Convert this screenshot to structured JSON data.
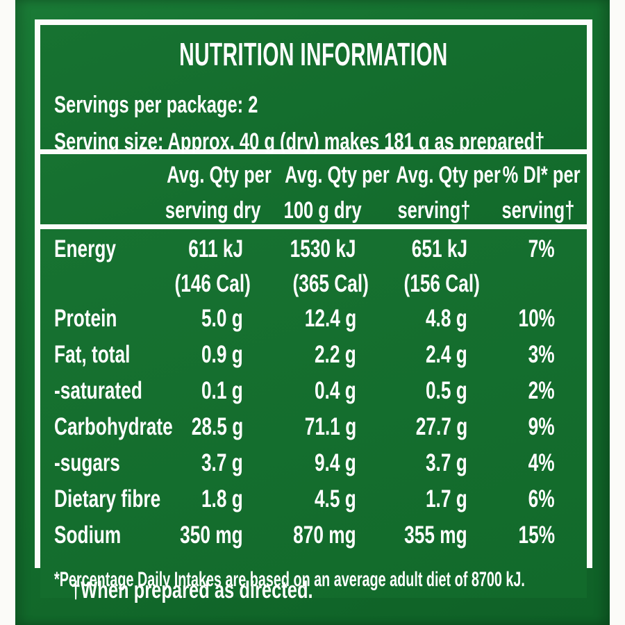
{
  "nutrition": {
    "title": "NUTRITION INFORMATION",
    "servings_per_package": "Servings per package: 2",
    "serving_size": "Serving size: Approx. 40 g (dry) makes 181 g as prepared†",
    "columns": [
      {
        "line1": "Avg. Qty per",
        "line2": "serving dry"
      },
      {
        "line1": "Avg. Qty per",
        "line2": "100 g dry"
      },
      {
        "line1": "Avg. Qty per",
        "line2": "serving†"
      },
      {
        "line1": "% DI* per",
        "line2": "serving†"
      }
    ],
    "rows": [
      {
        "name": "Energy",
        "serving_dry": "611 kJ",
        "serving_dry_sub": "(146 Cal)",
        "per_100g": "1530 kJ",
        "per_100g_sub": "(365 Cal)",
        "prepared": "651 kJ",
        "prepared_sub": "(156 Cal)",
        "di": "7%"
      },
      {
        "name": "Protein",
        "serving_dry": "5.0 g",
        "per_100g": "12.4 g",
        "prepared": "4.8 g",
        "di": "10%"
      },
      {
        "name": "Fat, total",
        "serving_dry": "0.9 g",
        "per_100g": "2.2 g",
        "prepared": "2.4 g",
        "di": "3%"
      },
      {
        "name": "-saturated",
        "serving_dry": "0.1 g",
        "per_100g": "0.4 g",
        "prepared": "0.5 g",
        "di": "2%"
      },
      {
        "name": "Carbohydrate",
        "serving_dry": "28.5 g",
        "per_100g": "71.1 g",
        "prepared": "27.7 g",
        "di": "9%"
      },
      {
        "name": "-sugars",
        "serving_dry": "3.7 g",
        "per_100g": "9.4 g",
        "prepared": "3.7 g",
        "di": "4%"
      },
      {
        "name": "Dietary fibre",
        "serving_dry": "1.8 g",
        "per_100g": "4.5 g",
        "prepared": "1.7 g",
        "di": "6%"
      },
      {
        "name": "Sodium",
        "serving_dry": "350 mg",
        "per_100g": "870 mg",
        "prepared": "355 mg",
        "di": "15%"
      }
    ],
    "footnote_di": "*Percentage Daily Intakes are based on an average adult diet of 8700 kJ.",
    "footnote_prepared": "†When prepared as directed.",
    "colors": {
      "panel_green": "#126a2c",
      "frame_white": "#fcfdfb",
      "text_white": "#ffffff"
    }
  }
}
